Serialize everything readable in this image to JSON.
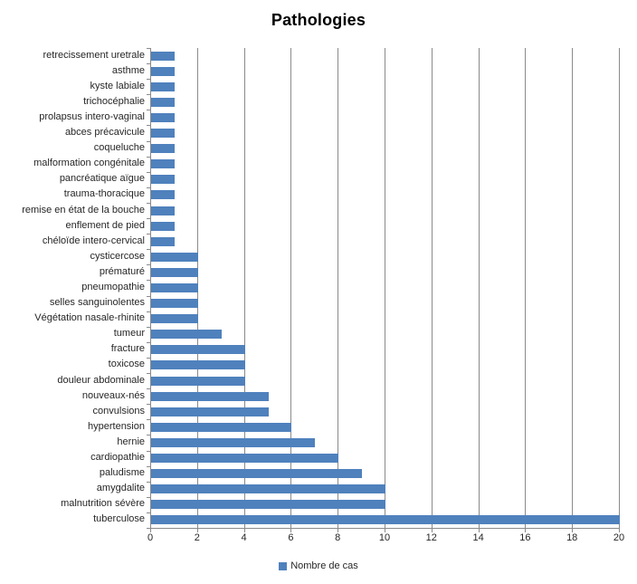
{
  "title": "Pathologies",
  "legend": {
    "label": "Nombre de cas"
  },
  "colors": {
    "bar": "#4f81bd",
    "gridline": "#8a8a8a",
    "axis": "#8a8a8a",
    "text": "#262626",
    "title_text": "#000000"
  },
  "chart_data": {
    "type": "bar",
    "orientation": "horizontal",
    "title": "Pathologies",
    "categories": [
      "retrecissement uretrale",
      "asthme",
      "kyste labiale",
      "trichocéphalie",
      "prolapsus intero-vaginal",
      "abces précavicule",
      "coqueluche",
      "malformation congénitale",
      "pancréatique aïgue",
      "trauma-thoracique",
      "remise en état de la bouche",
      "enflement de pied",
      "chéloïde intero-cervical",
      "cysticercose",
      "prématuré",
      "pneumopathie",
      "selles sanguinolentes",
      "Végétation nasale-rhinite",
      "tumeur",
      "fracture",
      "toxicose",
      "douleur abdominale",
      "nouveaux-nés",
      "convulsions",
      "hypertension",
      "hernie",
      "cardiopathie",
      "paludisme",
      "amygdalite",
      "malnutrition sévère",
      "tuberculose"
    ],
    "values": [
      1,
      1,
      1,
      1,
      1,
      1,
      1,
      1,
      1,
      1,
      1,
      1,
      1,
      2,
      2,
      2,
      2,
      2,
      3,
      4,
      4,
      4,
      5,
      5,
      6,
      7,
      8,
      9,
      10,
      10,
      20
    ],
    "series_name": "Nombre de cas",
    "xlabel": "",
    "ylabel": "",
    "xlim": [
      0,
      20
    ],
    "xticks": [
      0,
      2,
      4,
      6,
      8,
      10,
      12,
      14,
      16,
      18,
      20
    ],
    "grid": true,
    "legend_position": "bottom"
  }
}
